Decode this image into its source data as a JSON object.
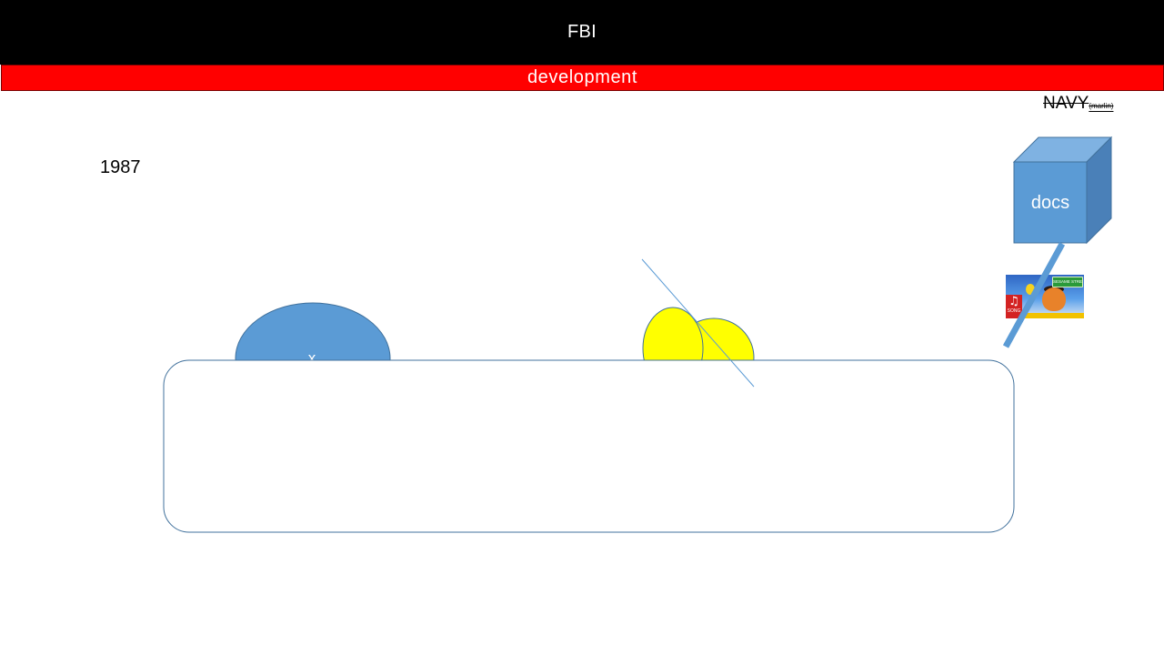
{
  "slide": {
    "title": "FBI",
    "subtitle": "development",
    "navy": {
      "main": "NAVY",
      "sub": "(marlin)"
    },
    "year": "1987",
    "cube_label": "docs",
    "oval_label": "x",
    "sticker": {
      "sign_text": "SESAME STREET",
      "song_label": "SONG"
    }
  },
  "colors": {
    "title_bar_bg": "#000000",
    "title_text": "#ffffff",
    "sub_bar_bg": "#ff0000",
    "sub_text": "#ffffff",
    "shape_blue": "#5b9bd5",
    "shape_blue_dark": "#41719c",
    "yellow": "#ffff00",
    "line_blue": "#5b9bd5"
  }
}
